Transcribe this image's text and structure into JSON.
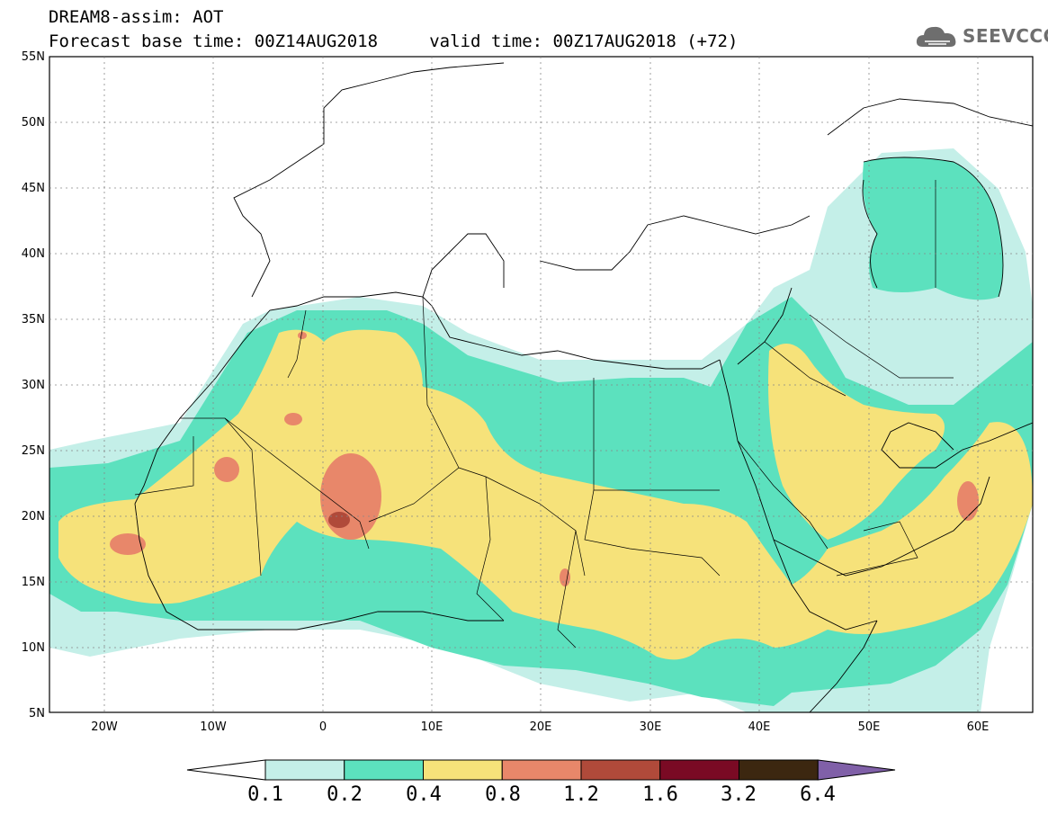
{
  "header": {
    "line1": "DREAM8-assim: AOT",
    "line2": "Forecast base time: 00Z14AUG2018     valid time: 00Z17AUG2018 (+72)",
    "brand": "SEEVCCC"
  },
  "axes": {
    "lat_ticks": [
      "55N",
      "50N",
      "45N",
      "40N",
      "35N",
      "30N",
      "25N",
      "20N",
      "15N",
      "10N",
      "5N"
    ],
    "lon_ticks": [
      "20W",
      "10W",
      "0",
      "10E",
      "20E",
      "30E",
      "40E",
      "50E",
      "60E"
    ]
  },
  "colorbar": {
    "labels": [
      "0.1",
      "0.2",
      "0.4",
      "0.8",
      "1.2",
      "1.6",
      "3.2",
      "6.4"
    ],
    "colors": [
      "#ffffff",
      "#c4efe8",
      "#5ce1be",
      "#f6e27a",
      "#e8876a",
      "#b04a3a",
      "#7a0a24",
      "#3c2710",
      "#8060a8"
    ]
  },
  "colors": {
    "c1": "#c4efe8",
    "c2": "#5ce1be",
    "c3": "#f6e27a",
    "c4": "#e8876a",
    "c5": "#b04a3a",
    "border": "#000000"
  }
}
